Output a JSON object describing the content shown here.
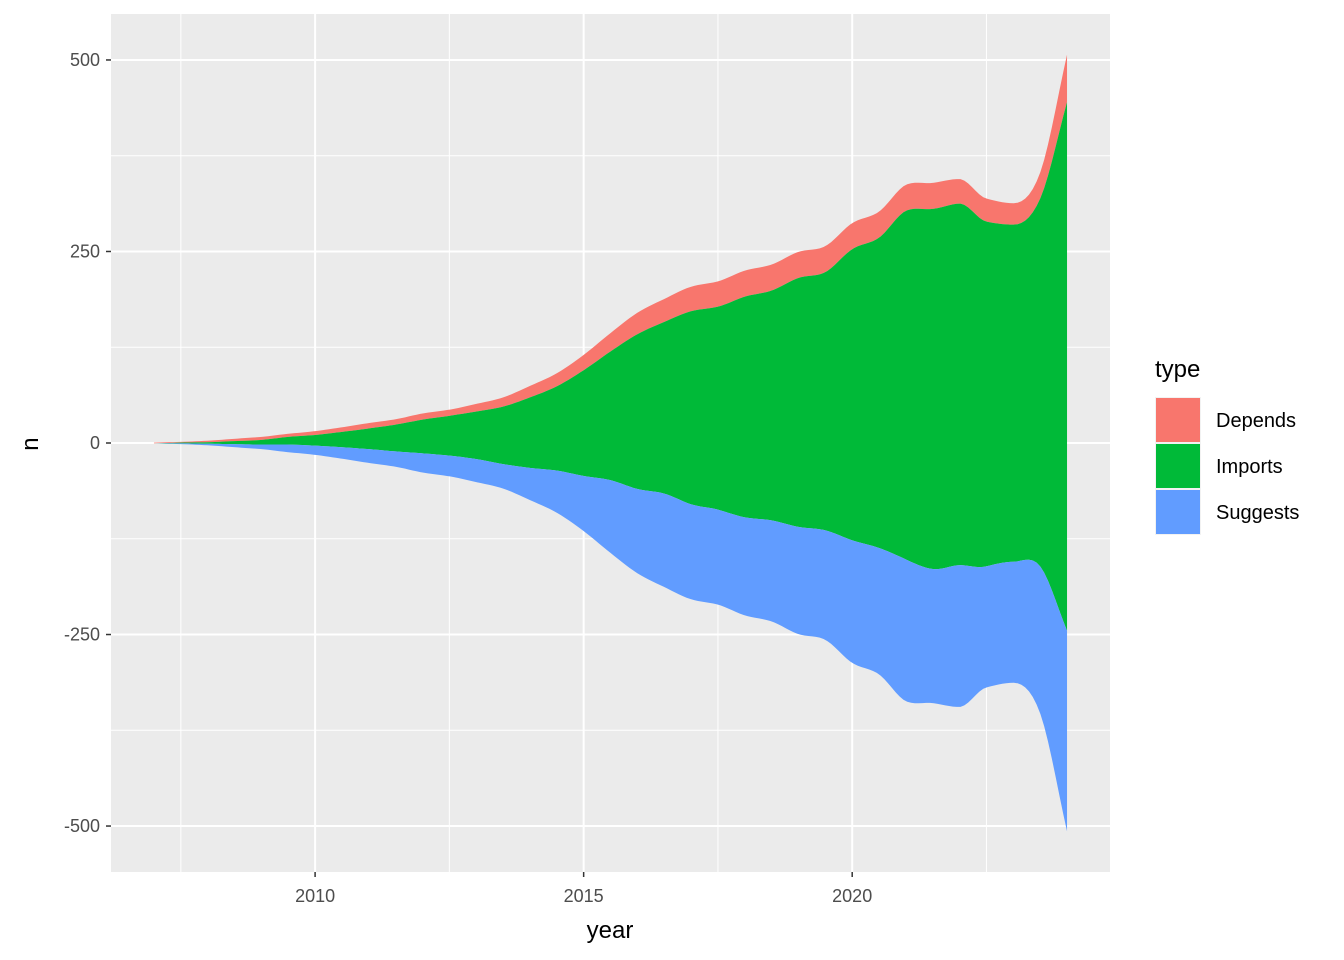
{
  "chart_data": {
    "type": "area",
    "subtype": "streamgraph",
    "title": "",
    "xlabel": "year",
    "ylabel": "n",
    "xlim": [
      2006.2,
      2024.8
    ],
    "ylim": [
      -560,
      560
    ],
    "x_ticks": [
      2010,
      2015,
      2020
    ],
    "x_tick_labels": [
      "2010",
      "2015",
      "2020"
    ],
    "y_ticks": [
      500,
      250,
      0,
      -250,
      -500
    ],
    "y_tick_labels": [
      "500",
      "250",
      "0",
      "-250",
      "-500"
    ],
    "grid": true,
    "legend": {
      "title": "type",
      "position": "right"
    },
    "x": [
      2007.0,
      2007.5,
      2008.0,
      2008.5,
      2009.0,
      2009.5,
      2010.0,
      2010.5,
      2011.0,
      2011.5,
      2012.0,
      2012.5,
      2013.0,
      2013.5,
      2014.0,
      2014.5,
      2015.0,
      2015.5,
      2016.0,
      2016.5,
      2017.0,
      2017.5,
      2018.0,
      2018.5,
      2019.0,
      2019.5,
      2020.0,
      2020.5,
      2021.0,
      2021.5,
      2022.0,
      2022.5,
      2023.0,
      2023.5,
      2024.0
    ],
    "series": [
      {
        "name": "Depends",
        "color": "#F8766D",
        "values": [
          1,
          1,
          2,
          3,
          4,
          4,
          5,
          6,
          7,
          7,
          8,
          8,
          10,
          12,
          15,
          17,
          20,
          24,
          28,
          30,
          32,
          33,
          34,
          34,
          34,
          34,
          34,
          34,
          34,
          34,
          32,
          30,
          28,
          34,
          62
        ]
      },
      {
        "name": "Imports",
        "color": "#00BA38",
        "values": [
          0,
          1,
          2,
          4,
          6,
          10,
          14,
          20,
          27,
          35,
          44,
          52,
          62,
          75,
          92,
          110,
          138,
          168,
          202,
          224,
          252,
          265,
          288,
          300,
          325,
          337,
          380,
          405,
          455,
          470,
          472,
          450,
          440,
          480,
          690
        ]
      },
      {
        "name": "Suggests",
        "color": "#619CFF",
        "values": [
          0,
          1,
          2,
          4,
          6,
          10,
          12,
          15,
          18,
          20,
          25,
          27,
          30,
          32,
          42,
          55,
          72,
          95,
          110,
          122,
          124,
          124,
          128,
          132,
          140,
          143,
          160,
          165,
          185,
          175,
          185,
          158,
          158,
          192,
          262
        ]
      }
    ]
  }
}
